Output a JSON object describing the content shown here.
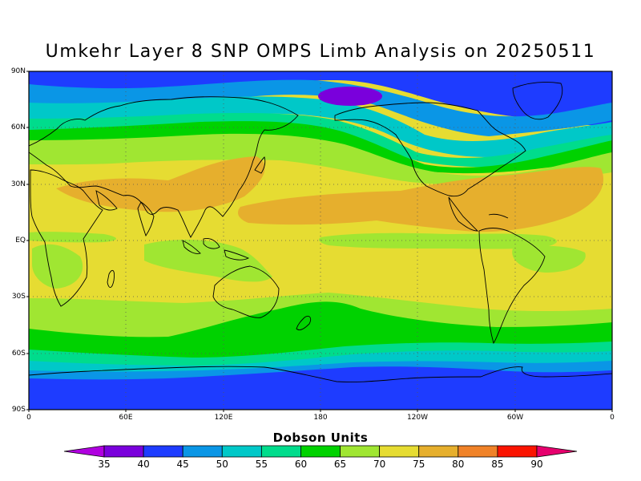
{
  "title": "Umkehr Layer 8 SNP OMPS Limb Analysis on 20250511",
  "units_label": "Dobson Units",
  "lat_labels": [
    "90N",
    "60N",
    "30N",
    "EQ",
    "30S",
    "60S",
    "90S"
  ],
  "lon_labels": [
    "0",
    "60E",
    "120E",
    "180",
    "120W",
    "60W",
    "0"
  ],
  "colorbar": {
    "ticks": [
      "35",
      "40",
      "45",
      "50",
      "55",
      "60",
      "65",
      "70",
      "75",
      "80",
      "85",
      "90"
    ],
    "colors": [
      "#b000e0",
      "#7a00dc",
      "#1e3cff",
      "#0a96e6",
      "#00c8c8",
      "#00dc8c",
      "#00d200",
      "#a0e632",
      "#e6dc32",
      "#e6af2d",
      "#f08228",
      "#fa1400",
      "#e6006e"
    ]
  },
  "field_colors": {
    "35": "#7a00dc",
    "40": "#1e3cff",
    "45": "#0a96e6",
    "50": "#00c8c8",
    "55": "#00dc8c",
    "60": "#00d200",
    "65": "#a0e632",
    "70": "#e6dc32",
    "75": "#e6af2d",
    "80": "#f08228"
  }
}
